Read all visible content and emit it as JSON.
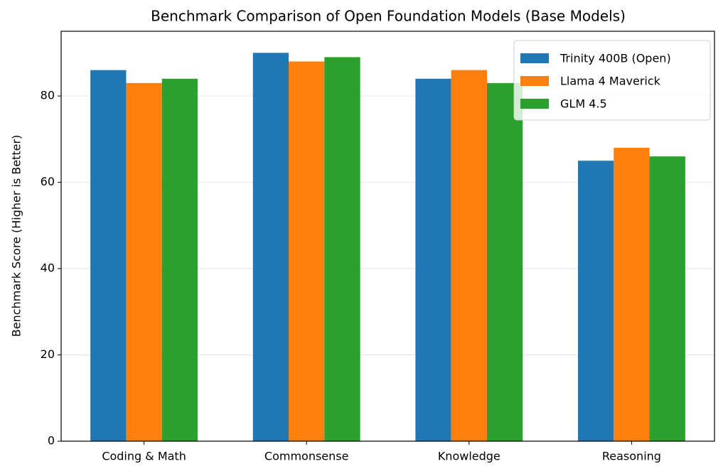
{
  "chart_data": {
    "type": "bar",
    "title": "Benchmark Comparison of Open Foundation Models (Base Models)",
    "y_label": "Benchmark Score (Higher is Better)",
    "categories": [
      "Coding & Math",
      "Commonsense",
      "Knowledge",
      "Reasoning"
    ],
    "series": [
      {
        "name": "Trinity 400B (Open)",
        "color": "#1f77b4",
        "values": [
          86,
          90,
          84,
          65
        ]
      },
      {
        "name": "Llama 4 Maverick",
        "color": "#ff7f0e",
        "values": [
          83,
          88,
          86,
          68
        ]
      },
      {
        "name": "GLM 4.5",
        "color": "#2ca02c",
        "values": [
          84,
          89,
          83,
          66
        ]
      }
    ],
    "ylim": [
      0,
      95
    ],
    "yticks": [
      0,
      20,
      40,
      60,
      80
    ],
    "grid": true,
    "legend": "upper right"
  }
}
